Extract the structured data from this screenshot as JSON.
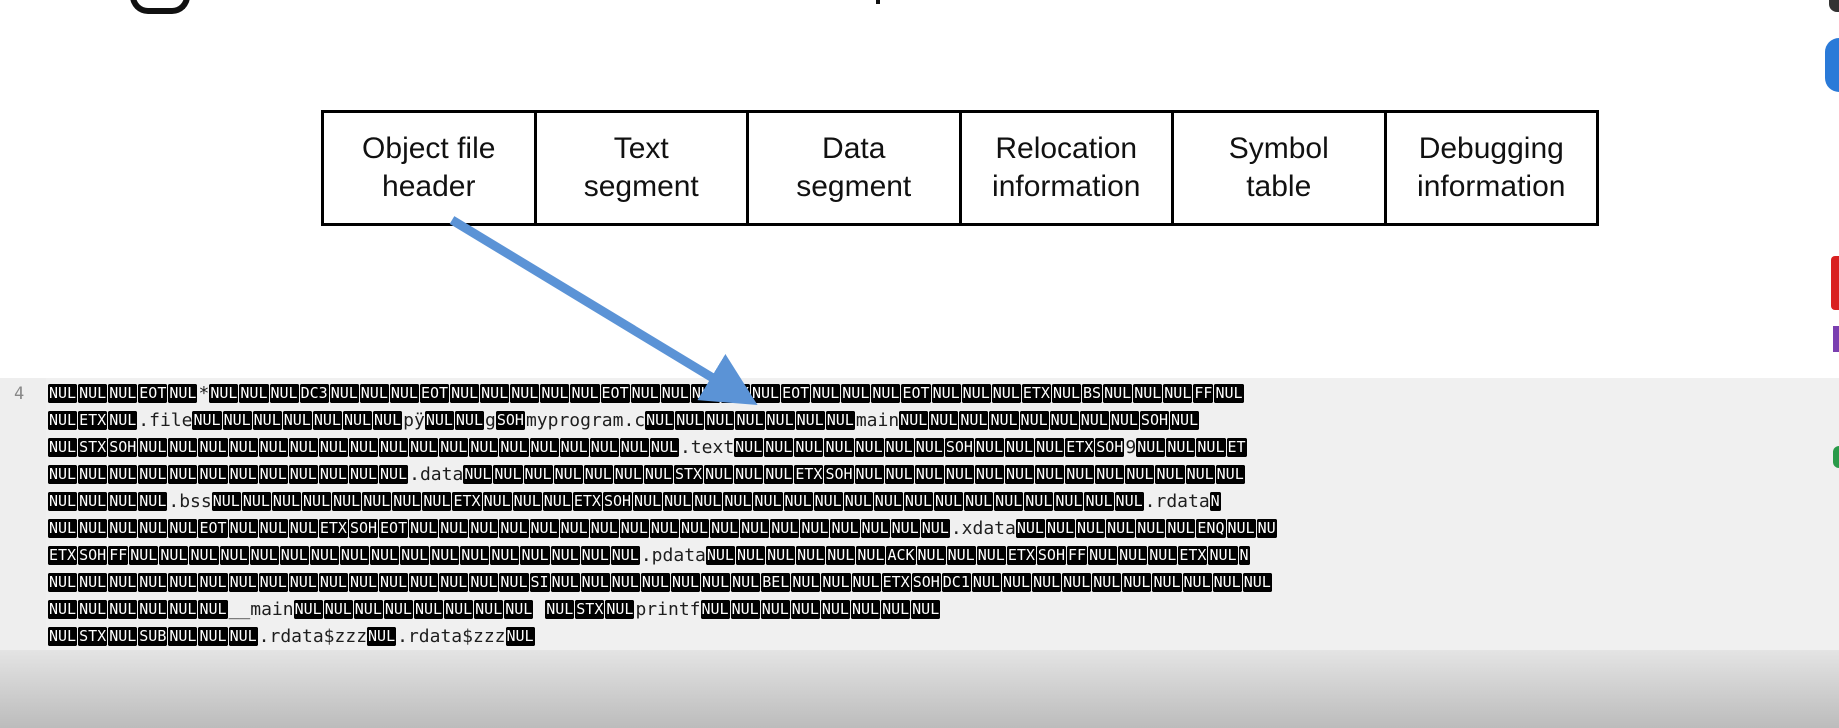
{
  "diagram": {
    "cells": [
      "Object file\nheader",
      "Text\nsegment",
      "Data\nsegment",
      "Relocation\ninformation",
      "Symbol\ntable",
      "Debugging\ninformation"
    ],
    "arrow_color": "#5b93d6"
  },
  "editor": {
    "line_number": "4",
    "rows": [
      [
        "@NUL",
        "@NUL",
        "@NUL",
        "@EOT",
        "@NUL",
        "*",
        "@NUL",
        "@NUL",
        "@NUL",
        "@DC3",
        "@NUL",
        "@NUL",
        "@NUL",
        "@EOT",
        "@NUL",
        "@NUL",
        "@NUL",
        "@NUL",
        "@NUL",
        "@EOT",
        "@NUL",
        "@NUL",
        "@NUL",
        "@ETX",
        "@NUL",
        "@EOT",
        "@NUL",
        "@NUL",
        "@NUL",
        "@EOT",
        "@NUL",
        "@NUL",
        "@NUL",
        "@ETX",
        "@NUL",
        "@BS",
        "@NUL",
        "@NUL",
        "@NUL",
        "@FF",
        "@NUL"
      ],
      [
        "@NUL",
        "@ETX",
        "@NUL",
        ".file",
        "@NUL",
        "@NUL",
        "@NUL",
        "@NUL",
        "@NUL",
        "@NUL",
        "@NUL",
        "pÿ",
        "@NUL",
        "@NUL",
        "g",
        "@SOH",
        "myprogram.c",
        "@NUL",
        "@NUL",
        "@NUL",
        "@NUL",
        "@NUL",
        "@NUL",
        "@NUL",
        "main",
        "@NUL",
        "@NUL",
        "@NUL",
        "@NUL",
        "@NUL",
        "@NUL",
        "@NUL",
        "@NUL",
        "@SOH",
        "@NUL"
      ],
      [
        "@NUL",
        "@STX",
        "@SOH",
        "@NUL",
        "@NUL",
        "@NUL",
        "@NUL",
        "@NUL",
        "@NUL",
        "@NUL",
        "@NUL",
        "@NUL",
        "@NUL",
        "@NUL",
        "@NUL",
        "@NUL",
        "@NUL",
        "@NUL",
        "@NUL",
        "@NUL",
        "@NUL",
        ".text",
        "@NUL",
        "@NUL",
        "@NUL",
        "@NUL",
        "@NUL",
        "@NUL",
        "@NUL",
        "@SOH",
        "@NUL",
        "@NUL",
        "@NUL",
        "@ETX",
        "@SOH",
        "9",
        "@NUL",
        "@NUL",
        "@NUL",
        "@ET"
      ],
      [
        "@NUL",
        "@NUL",
        "@NUL",
        "@NUL",
        "@NUL",
        "@NUL",
        "@NUL",
        "@NUL",
        "@NUL",
        "@NUL",
        "@NUL",
        "@NUL",
        ".data",
        "@NUL",
        "@NUL",
        "@NUL",
        "@NUL",
        "@NUL",
        "@NUL",
        "@NUL",
        "@STX",
        "@NUL",
        "@NUL",
        "@NUL",
        "@ETX",
        "@SOH",
        "@NUL",
        "@NUL",
        "@NUL",
        "@NUL",
        "@NUL",
        "@NUL",
        "@NUL",
        "@NUL",
        "@NUL",
        "@NUL",
        "@NUL",
        "@NUL",
        "@NUL"
      ],
      [
        "@NUL",
        "@NUL",
        "@NUL",
        "@NUL",
        ".bss",
        "@NUL",
        "@NUL",
        "@NUL",
        "@NUL",
        "@NUL",
        "@NUL",
        "@NUL",
        "@NUL",
        "@ETX",
        "@NUL",
        "@NUL",
        "@NUL",
        "@ETX",
        "@SOH",
        "@NUL",
        "@NUL",
        "@NUL",
        "@NUL",
        "@NUL",
        "@NUL",
        "@NUL",
        "@NUL",
        "@NUL",
        "@NUL",
        "@NUL",
        "@NUL",
        "@NUL",
        "@NUL",
        "@NUL",
        "@NUL",
        "@NUL",
        ".rdata",
        "@N"
      ],
      [
        "@NUL",
        "@NUL",
        "@NUL",
        "@NUL",
        "@NUL",
        "@EOT",
        "@NUL",
        "@NUL",
        "@NUL",
        "@ETX",
        "@SOH",
        "@EOT",
        "@NUL",
        "@NUL",
        "@NUL",
        "@NUL",
        "@NUL",
        "@NUL",
        "@NUL",
        "@NUL",
        "@NUL",
        "@NUL",
        "@NUL",
        "@NUL",
        "@NUL",
        "@NUL",
        "@NUL",
        "@NUL",
        "@NUL",
        "@NUL",
        ".xdata",
        "@NUL",
        "@NUL",
        "@NUL",
        "@NUL",
        "@NUL",
        "@NUL",
        "@ENQ",
        "@NUL",
        "@NU"
      ],
      [
        "@ETX",
        "@SOH",
        "@FF",
        "@NUL",
        "@NUL",
        "@NUL",
        "@NUL",
        "@NUL",
        "@NUL",
        "@NUL",
        "@NUL",
        "@NUL",
        "@NUL",
        "@NUL",
        "@NUL",
        "@NUL",
        "@NUL",
        "@NUL",
        "@NUL",
        "@NUL",
        ".pdata",
        "@NUL",
        "@NUL",
        "@NUL",
        "@NUL",
        "@NUL",
        "@NUL",
        "@ACK",
        "@NUL",
        "@NUL",
        "@NUL",
        "@ETX",
        "@SOH",
        "@FF",
        "@NUL",
        "@NUL",
        "@NUL",
        "@ETX",
        "@NUL",
        "@N"
      ],
      [
        "@NUL",
        "@NUL",
        "@NUL",
        "@NUL",
        "@NUL",
        "@NUL",
        "@NUL",
        "@NUL",
        "@NUL",
        "@NUL",
        "@NUL",
        "@NUL",
        "@NUL",
        "@NUL",
        "@NUL",
        "@NUL",
        "@SI",
        "@NUL",
        "@NUL",
        "@NUL",
        "@NUL",
        "@NUL",
        "@NUL",
        "@NUL",
        "@BEL",
        "@NUL",
        "@NUL",
        "@NUL",
        "@ETX",
        "@SOH",
        "@DC1",
        "@NUL",
        "@NUL",
        "@NUL",
        "@NUL",
        "@NUL",
        "@NUL",
        "@NUL",
        "@NUL",
        "@NUL",
        "@NUL"
      ],
      [
        "@NUL",
        "@NUL",
        "@NUL",
        "@NUL",
        "@NUL",
        "@NUL",
        "__main",
        "@NUL",
        "@NUL",
        "@NUL",
        "@NUL",
        "@NUL",
        "@NUL",
        "@NUL",
        "@NUL",
        " ",
        "@NUL",
        "@STX",
        "@NUL",
        "printf",
        "@NUL",
        "@NUL",
        "@NUL",
        "@NUL",
        "@NUL",
        "@NUL",
        "@NUL",
        "@NUL"
      ],
      [
        "@NUL",
        "@STX",
        "@NUL",
        "@SUB",
        "@NUL",
        "@NUL",
        "@NUL",
        ".rdata$zzz",
        "@NUL",
        ".rdata$zzz",
        "@NUL"
      ]
    ]
  }
}
